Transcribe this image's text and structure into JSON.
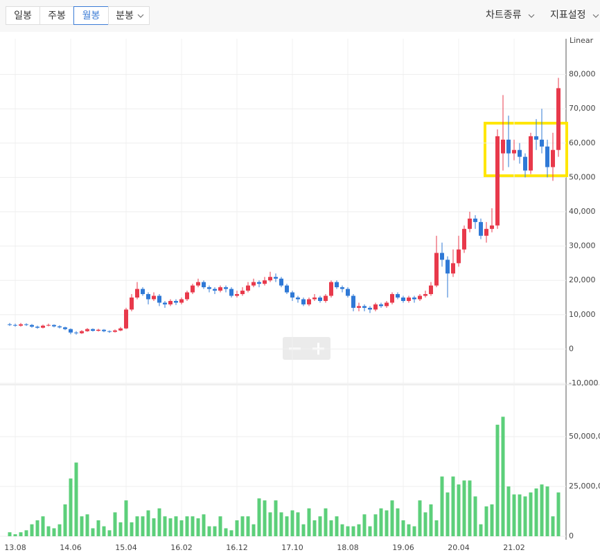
{
  "toolbar": {
    "periods": [
      "일봉",
      "주봉",
      "월봉",
      "분봉"
    ],
    "active": 2,
    "menus": [
      "차트종류",
      "지표설정"
    ]
  },
  "chart_data": [
    {
      "type": "candlestick",
      "scale_label": "Linear",
      "up_color": "#e8394b",
      "down_color": "#2f79d6",
      "categories": [
        null,
        "13.08",
        null,
        null,
        null,
        null,
        null,
        null,
        null,
        null,
        null,
        "14.06",
        null,
        null,
        null,
        null,
        null,
        null,
        null,
        null,
        null,
        "15.04",
        null,
        null,
        null,
        null,
        null,
        null,
        null,
        null,
        null,
        "16.02",
        null,
        null,
        null,
        null,
        null,
        null,
        null,
        null,
        null,
        "16.12",
        null,
        null,
        null,
        null,
        null,
        null,
        null,
        null,
        null,
        "17.10",
        null,
        null,
        null,
        null,
        null,
        null,
        null,
        null,
        null,
        "18.08",
        null,
        null,
        null,
        null,
        null,
        null,
        null,
        null,
        null,
        "19.06",
        null,
        null,
        null,
        null,
        null,
        null,
        null,
        null,
        null,
        "20.04",
        null,
        null,
        null,
        null,
        null,
        null,
        null,
        null,
        null,
        "21.02",
        null,
        null,
        null,
        null,
        null,
        null,
        null,
        null
      ],
      "open": [
        7200,
        7000,
        6800,
        7200,
        7000,
        6500,
        6200,
        6800,
        7000,
        6600,
        6300,
        5800,
        4800,
        4600,
        5200,
        5800,
        5300,
        5600,
        5200,
        5000,
        5400,
        6000,
        11500,
        15000,
        17500,
        16000,
        14500,
        15500,
        13500,
        13000,
        14000,
        13500,
        14500,
        16500,
        18500,
        19500,
        18000,
        17500,
        17000,
        18000,
        17500,
        15500,
        16000,
        17000,
        18500,
        19500,
        19000,
        20000,
        21000,
        20500,
        18500,
        16500,
        15000,
        14500,
        13000,
        14500,
        15000,
        14000,
        15500,
        19500,
        18000,
        17500,
        15500,
        12000,
        12500,
        12000,
        11500,
        13000,
        12500,
        13500,
        16000,
        15000,
        14000,
        15000,
        14500,
        15500,
        16000,
        18500,
        28000,
        26000,
        22000,
        25000,
        29000,
        35000,
        38000,
        37000,
        33000,
        35000,
        36000,
        57000,
        61000,
        57000,
        58000,
        56000,
        52000,
        62000,
        61000,
        59000,
        53000,
        58000
      ],
      "high": [
        7600,
        7400,
        7600,
        7500,
        7300,
        6800,
        7100,
        7400,
        7200,
        6900,
        6500,
        6000,
        5200,
        5500,
        6100,
        6000,
        5900,
        5800,
        5400,
        5700,
        6400,
        12000,
        16000,
        19500,
        18000,
        16500,
        16500,
        16000,
        14000,
        14500,
        14500,
        15000,
        17000,
        19000,
        20500,
        20000,
        18500,
        18000,
        18500,
        18500,
        18000,
        17000,
        18000,
        19500,
        20500,
        20000,
        21000,
        22500,
        22000,
        21000,
        19000,
        17000,
        15500,
        15000,
        15000,
        16000,
        15500,
        16000,
        20000,
        20000,
        18500,
        18000,
        16000,
        13500,
        13000,
        12500,
        13500,
        13500,
        14000,
        16500,
        16500,
        15500,
        15500,
        15500,
        16000,
        17000,
        19500,
        33000,
        31000,
        27000,
        29000,
        33000,
        36000,
        40000,
        39000,
        38000,
        37000,
        41000,
        64000,
        74000,
        68000,
        61000,
        60000,
        57000,
        63000,
        67000,
        70000,
        61000,
        63000,
        79000
      ],
      "low": [
        6700,
        6500,
        6500,
        6700,
        6200,
        5900,
        6000,
        6600,
        6300,
        6000,
        5500,
        4300,
        4200,
        4400,
        5000,
        5100,
        5100,
        4900,
        4700,
        4800,
        5200,
        5800,
        11000,
        14500,
        15500,
        13000,
        14000,
        12500,
        12000,
        12500,
        12800,
        13000,
        14000,
        16000,
        18000,
        17500,
        16500,
        16000,
        16500,
        16500,
        15000,
        15000,
        15500,
        16500,
        18000,
        18000,
        18500,
        19500,
        19500,
        18000,
        16000,
        14000,
        13500,
        12500,
        12500,
        14000,
        13500,
        13500,
        15000,
        17500,
        16500,
        15000,
        11000,
        11000,
        11000,
        10500,
        11000,
        12000,
        12000,
        13000,
        14500,
        13500,
        13500,
        13500,
        14000,
        15000,
        15500,
        18000,
        24000,
        15000,
        21000,
        24000,
        28000,
        34000,
        35000,
        32000,
        31000,
        34000,
        35000,
        52000,
        53000,
        55000,
        54000,
        50000,
        51000,
        58000,
        57000,
        50000,
        49000,
        56000
      ],
      "close": [
        7000,
        6800,
        7200,
        7000,
        6500,
        6200,
        6800,
        7000,
        6600,
        6300,
        5800,
        4800,
        4600,
        5200,
        5800,
        5300,
        5600,
        5200,
        5000,
        5400,
        6000,
        11500,
        15000,
        17500,
        16000,
        14500,
        15500,
        13500,
        13000,
        14000,
        13500,
        14500,
        16500,
        18500,
        19500,
        18000,
        17500,
        17000,
        18000,
        17500,
        15500,
        16000,
        17000,
        18500,
        19500,
        19000,
        20000,
        21000,
        20500,
        18500,
        16500,
        15000,
        14500,
        13000,
        14500,
        15000,
        14000,
        15500,
        19500,
        18000,
        17500,
        15500,
        12000,
        12500,
        12000,
        11500,
        13000,
        12500,
        13500,
        16000,
        15000,
        14000,
        15000,
        14500,
        15500,
        16000,
        18500,
        28000,
        26000,
        22000,
        25000,
        29000,
        35000,
        38000,
        37000,
        33000,
        35000,
        36000,
        62000,
        61000,
        57000,
        58000,
        56000,
        52000,
        62000,
        61000,
        59000,
        53000,
        58000,
        76000
      ],
      "ylim": [
        -10000,
        90000
      ],
      "yticks": [
        {
          "value": 80000,
          "label": "80,000"
        },
        {
          "value": 70000,
          "label": "70,000"
        },
        {
          "value": 60000,
          "label": "60,000"
        },
        {
          "value": 50000,
          "label": "50,000"
        },
        {
          "value": 40000,
          "label": "40,000"
        },
        {
          "value": 30000,
          "label": "30,000"
        },
        {
          "value": 20000,
          "label": "20,000"
        },
        {
          "value": 10000,
          "label": "10,000"
        },
        0,
        {
          "value": -10000,
          "label": "-10,000"
        }
      ],
      "grid": true
    },
    {
      "type": "bar",
      "color": "#5ccf7a",
      "values": [
        2000000,
        1000000,
        2000000,
        3000000,
        6000000,
        8000000,
        10000000,
        5000000,
        4000000,
        6000000,
        16000000,
        29000000,
        37000000,
        10000000,
        11000000,
        4000000,
        8000000,
        5000000,
        3000000,
        12000000,
        7000000,
        18000000,
        7000000,
        10000000,
        10000000,
        13000000,
        9000000,
        14000000,
        10000000,
        9000000,
        10000000,
        8000000,
        10000000,
        10000000,
        9000000,
        11000000,
        5000000,
        5000000,
        10000000,
        4000000,
        3000000,
        8000000,
        10000000,
        10000000,
        6000000,
        19000000,
        18000000,
        12000000,
        18000000,
        12000000,
        10000000,
        13000000,
        12000000,
        6000000,
        14000000,
        8000000,
        10000000,
        14000000,
        8000000,
        10000000,
        6000000,
        5000000,
        5000000,
        6000000,
        11000000,
        5000000,
        11000000,
        14000000,
        13000000,
        18000000,
        14000000,
        8000000,
        6000000,
        5000000,
        18000000,
        12000000,
        16000000,
        8000000,
        30000000,
        22000000,
        30000000,
        26000000,
        28000000,
        28000000,
        20000000,
        6000000,
        15000000,
        16000000,
        56000000,
        60000000,
        25000000,
        21000000,
        21000000,
        20000000,
        22000000,
        24000000,
        26000000,
        25000000,
        10000000,
        22000000
      ],
      "ylim": [
        0,
        74000000
      ],
      "yticks": [
        {
          "value": 50000000,
          "label": "50,000,000"
        },
        {
          "value": 25000000,
          "label": "25,000,000"
        },
        0
      ],
      "grid": true
    }
  ]
}
